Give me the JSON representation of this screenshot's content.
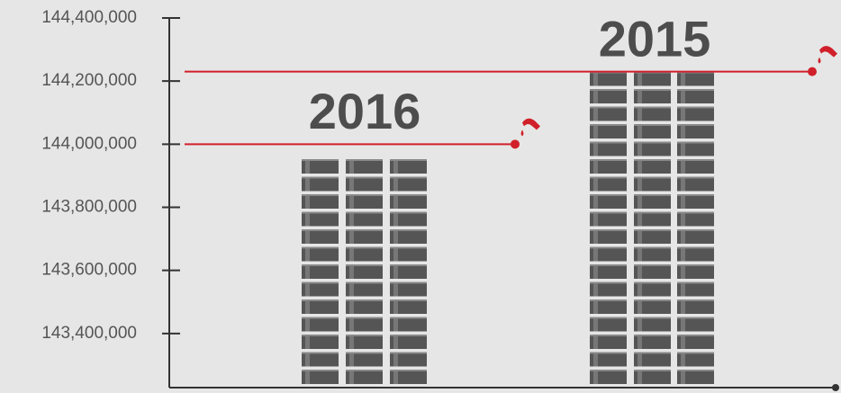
{
  "chart_data": {
    "type": "bar",
    "categories": [
      "2016",
      "2015"
    ],
    "values": [
      144000000,
      144230000
    ],
    "color": "#d0202a",
    "bar_color": "#555555",
    "ylim": [
      143228571,
      144400000
    ],
    "yticks": [
      {
        "value": 143400000,
        "label": "143,400,000"
      },
      {
        "value": 143600000,
        "label": "143,600,000"
      },
      {
        "value": 143800000,
        "label": "143,800,000"
      },
      {
        "value": 144000000,
        "label": "144,000,000"
      },
      {
        "value": 144200000,
        "label": "144,200,000"
      },
      {
        "value": 144400000,
        "label": "144,400,000"
      }
    ]
  }
}
